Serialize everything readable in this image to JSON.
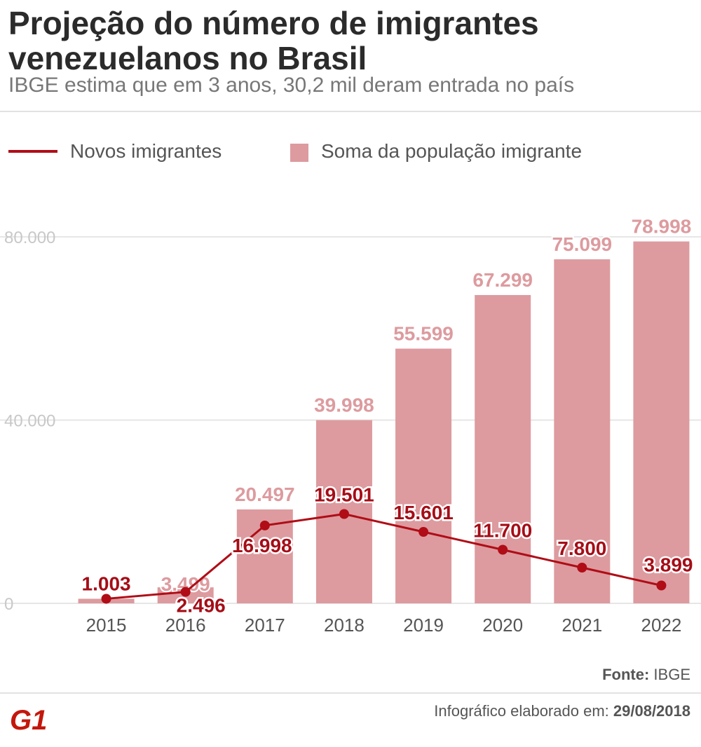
{
  "header": {
    "title": "Projeção do número de imigrantes venezuelanos no Brasil",
    "subtitle": "IBGE estima que em 3 anos, 30,2 mil deram entrada no país"
  },
  "legend": {
    "line_label": "Novos imigrantes",
    "bar_label": "Soma da população imigrante"
  },
  "colors": {
    "bar": "#dd9b9f",
    "bar_label": "#dd9b9f",
    "line": "#b00d17",
    "line_label": "#a50d17",
    "grid": "#e6e6e6",
    "tick_label": "#c8c8c8",
    "axis_label": "#555555"
  },
  "chart_data": {
    "type": "bar",
    "categories": [
      "2015",
      "2016",
      "2017",
      "2018",
      "2019",
      "2020",
      "2021",
      "2022"
    ],
    "series": [
      {
        "name": "Soma da população imigrante",
        "type": "bar",
        "values": [
          1003,
          3499,
          20497,
          39998,
          55599,
          67299,
          75099,
          78998
        ],
        "labels": [
          "1.003",
          "3.499",
          "20.497",
          "39.998",
          "55.599",
          "67.299",
          "75.099",
          "78.998"
        ]
      },
      {
        "name": "Novos imigrantes",
        "type": "line",
        "values": [
          1003,
          2496,
          16998,
          19501,
          15601,
          11700,
          7800,
          3899
        ],
        "labels": [
          "1.003",
          "2.496",
          "16.998",
          "19.501",
          "15.601",
          "11.700",
          "7.800",
          "3.899"
        ]
      }
    ],
    "ylim": [
      0,
      80000
    ],
    "yticks": [
      0,
      40000,
      80000
    ],
    "ytick_labels": [
      "0",
      "40.000",
      "80.000"
    ],
    "grid": true
  },
  "footer": {
    "source_label": "Fonte:",
    "source_value": "IBGE",
    "credit_label": "Infográfico elaborado em:",
    "credit_date": "29/08/2018",
    "logo_text": "G1"
  }
}
